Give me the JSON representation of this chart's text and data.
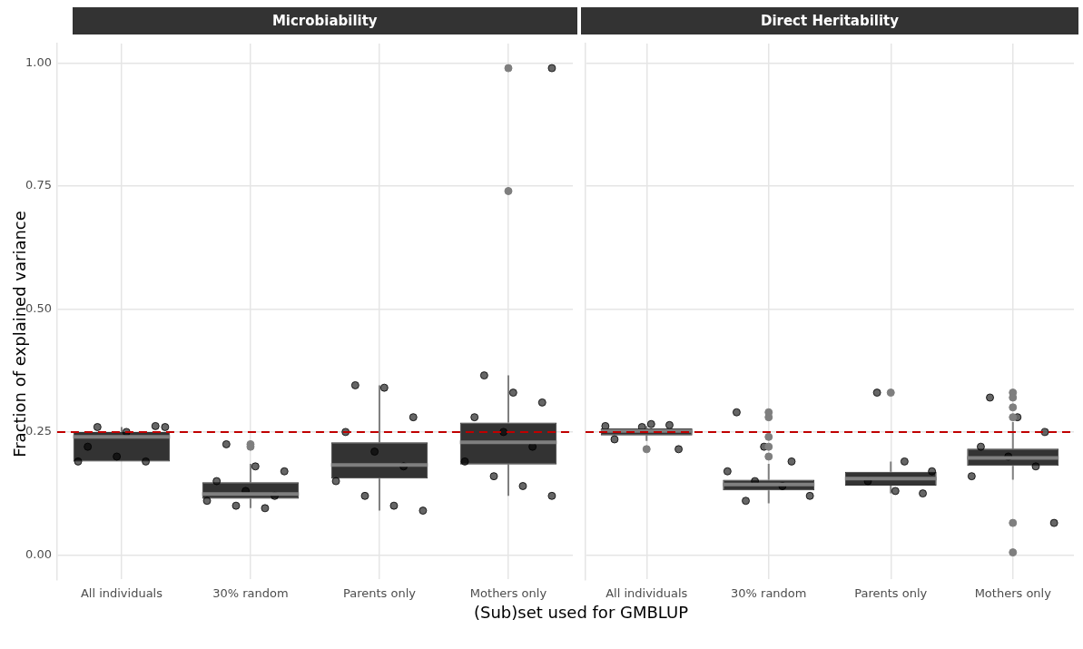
{
  "chart_data": [
    {
      "type": "box",
      "title": "Microbiability",
      "xlabel": "(Sub)set used for GMBLUP",
      "ylabel": "Fraction of explained variance",
      "categories": [
        "All individuals",
        "30% random",
        "Parents only",
        "Mothers only"
      ],
      "color": "#333333",
      "boxes": [
        {
          "low": 0.19,
          "q1": 0.19,
          "median": 0.24,
          "q3": 0.25,
          "high": 0.26
        },
        {
          "low": 0.095,
          "q1": 0.114,
          "median": 0.124,
          "q3": 0.148,
          "high": 0.185,
          "outliers": [
            0.225,
            0.22
          ]
        },
        {
          "low": 0.09,
          "q1": 0.155,
          "median": 0.183,
          "q3": 0.229,
          "high": 0.345
        },
        {
          "low": 0.12,
          "q1": 0.184,
          "median": 0.229,
          "q3": 0.269,
          "high": 0.365,
          "outliers": [
            0.74,
            0.99
          ]
        }
      ],
      "series": [
        {
          "type": "scatter",
          "color": "#000000",
          "x": [
            "All individuals",
            "All individuals",
            "All individuals",
            "All individuals",
            "All individuals",
            "All individuals",
            "All individuals",
            "All individuals",
            "30% random",
            "30% random",
            "30% random",
            "30% random",
            "30% random",
            "30% random",
            "30% random",
            "30% random",
            "30% random",
            "Parents only",
            "Parents only",
            "Parents only",
            "Parents only",
            "Parents only",
            "Parents only",
            "Parents only",
            "Parents only",
            "Parents only",
            "Parents only",
            "Mothers only",
            "Mothers only",
            "Mothers only",
            "Mothers only",
            "Mothers only",
            "Mothers only",
            "Mothers only",
            "Mothers only",
            "Mothers only",
            "Mothers only",
            "Mothers only"
          ],
          "values": [
            0.19,
            0.19,
            0.2,
            0.22,
            0.262,
            0.25,
            0.26,
            0.26,
            0.095,
            0.1,
            0.11,
            0.12,
            0.13,
            0.15,
            0.17,
            0.18,
            0.225,
            0.09,
            0.1,
            0.12,
            0.15,
            0.18,
            0.21,
            0.25,
            0.28,
            0.34,
            0.345,
            0.12,
            0.14,
            0.16,
            0.19,
            0.22,
            0.25,
            0.28,
            0.31,
            0.33,
            0.365,
            0.99
          ]
        }
      ],
      "ylim": [
        -0.05,
        1.04
      ],
      "yticks": [
        {
          "value": 0,
          "label": "0.00"
        },
        {
          "value": 0.25,
          "label": "0.25"
        },
        {
          "value": 0.5,
          "label": "0.50"
        },
        {
          "value": 0.75,
          "label": "0.75"
        },
        {
          "value": 1,
          "label": "1.00"
        }
      ],
      "ref_lines": [
        {
          "axis": "y",
          "value": 0.25,
          "color": "#c00000",
          "line_style": "dashed"
        }
      ],
      "grid": true,
      "legend": false
    },
    {
      "type": "box",
      "title": "Direct Heritability",
      "categories": [
        "All individuals",
        "30% random",
        "Parents only",
        "Mothers only"
      ],
      "color": "#333333",
      "boxes": [
        {
          "low": 0.232,
          "q1": 0.243,
          "median": 0.252,
          "q3": 0.257,
          "high": 0.262,
          "outliers": [
            0.215
          ]
        },
        {
          "low": 0.105,
          "q1": 0.131,
          "median": 0.143,
          "q3": 0.153,
          "high": 0.185,
          "outliers": [
            0.2,
            0.22,
            0.24,
            0.28,
            0.29
          ]
        },
        {
          "low": 0.125,
          "q1": 0.141,
          "median": 0.155,
          "q3": 0.169,
          "high": 0.19,
          "outliers": [
            0.33
          ]
        },
        {
          "low": 0.153,
          "q1": 0.181,
          "median": 0.197,
          "q3": 0.216,
          "high": 0.27,
          "outliers": [
            0.33,
            0.32,
            0.3,
            0.28,
            0.065,
            0.005
          ]
        }
      ],
      "series": [
        {
          "type": "scatter",
          "color": "#000000",
          "x": [
            "All individuals",
            "All individuals",
            "All individuals",
            "All individuals",
            "All individuals",
            "All individuals",
            "30% random",
            "30% random",
            "30% random",
            "30% random",
            "30% random",
            "30% random",
            "30% random",
            "30% random",
            "Parents only",
            "Parents only",
            "Parents only",
            "Parents only",
            "Parents only",
            "Parents only",
            "Mothers only",
            "Mothers only",
            "Mothers only",
            "Mothers only",
            "Mothers only",
            "Mothers only",
            "Mothers only",
            "Mothers only"
          ],
          "values": [
            0.262,
            0.264,
            0.26,
            0.235,
            0.215,
            0.266,
            0.11,
            0.12,
            0.14,
            0.15,
            0.17,
            0.19,
            0.22,
            0.29,
            0.125,
            0.13,
            0.15,
            0.17,
            0.19,
            0.33,
            0.16,
            0.18,
            0.2,
            0.22,
            0.25,
            0.28,
            0.32,
            0.065
          ]
        }
      ],
      "ylim": [
        -0.05,
        1.04
      ],
      "yticks": [
        {
          "value": 0,
          "label": null
        },
        {
          "value": 0.25,
          "label": null
        },
        {
          "value": 0.5,
          "label": null
        },
        {
          "value": 0.75,
          "label": null
        },
        {
          "value": 1,
          "label": null
        }
      ],
      "tick_labels": "x",
      "ref_lines": [
        {
          "axis": "y",
          "value": 0.25,
          "color": "#c00000",
          "line_style": "dashed"
        }
      ],
      "grid": true,
      "legend": false
    }
  ]
}
